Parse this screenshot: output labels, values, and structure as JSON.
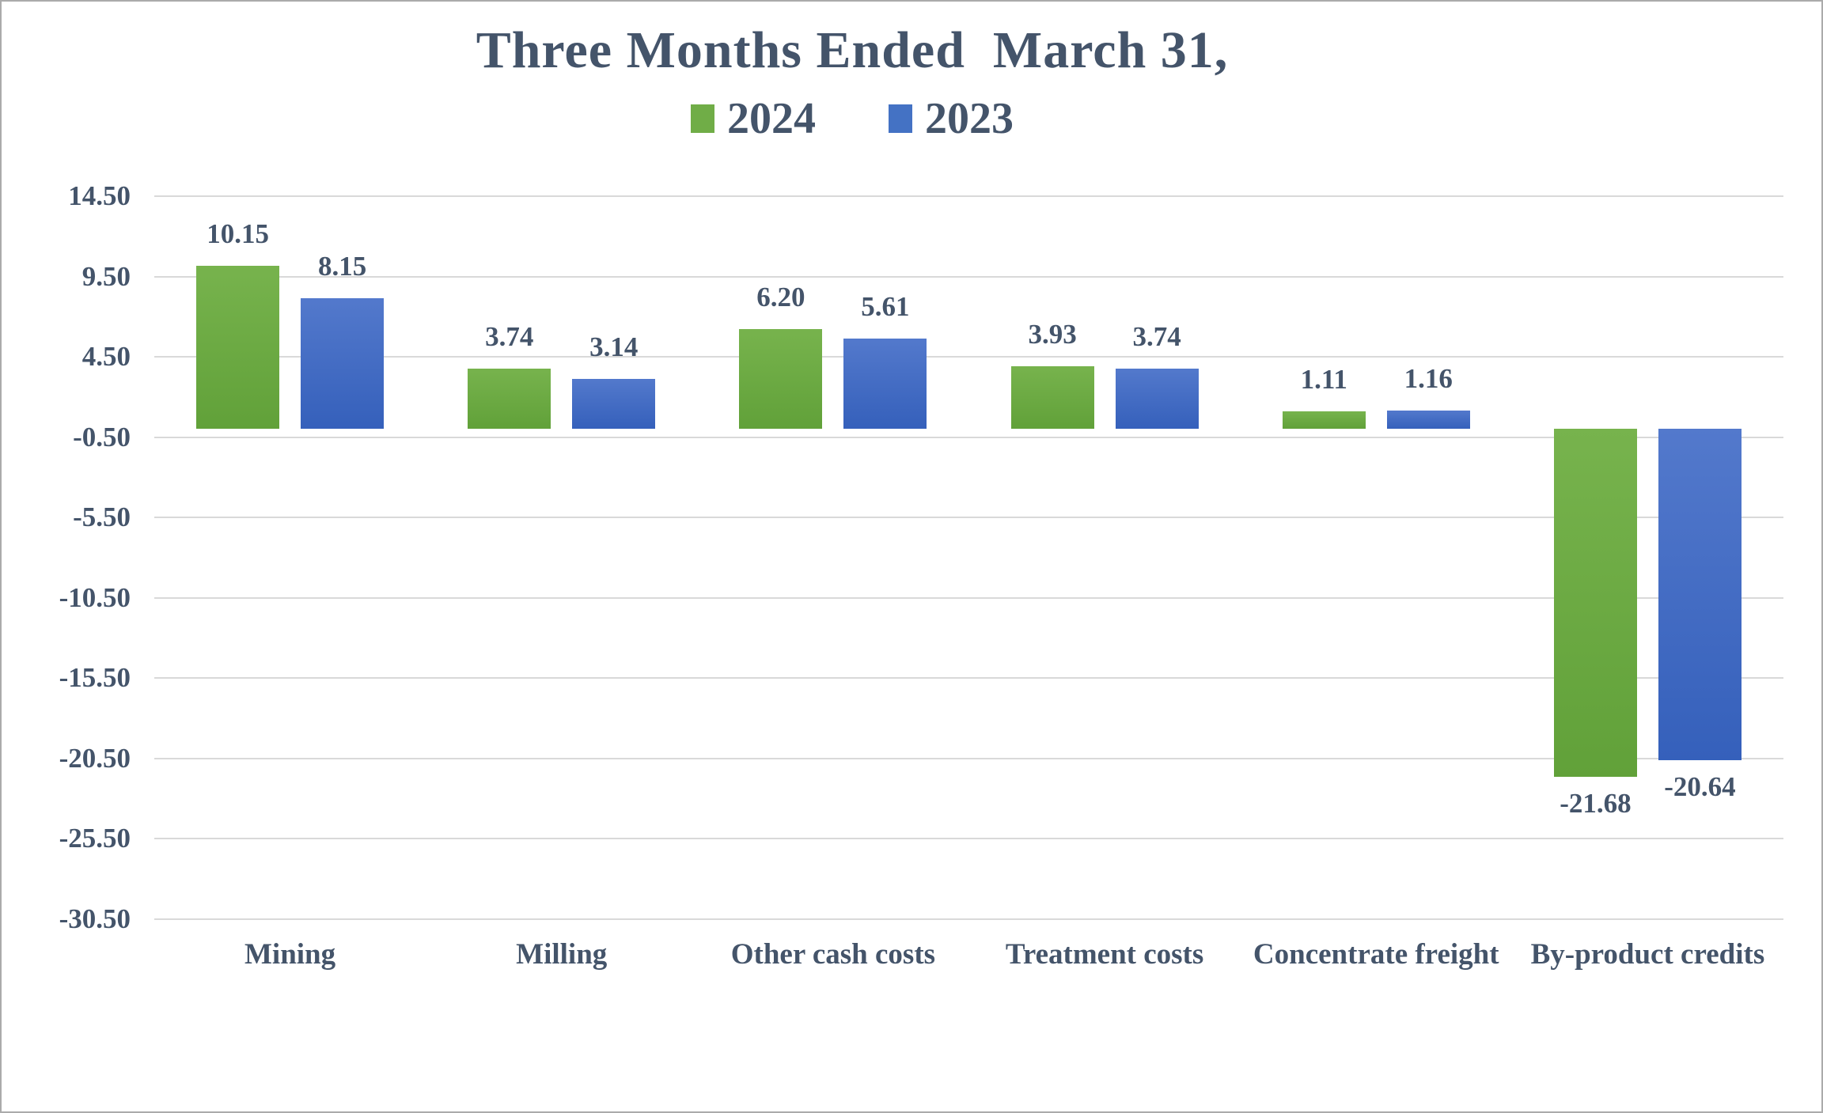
{
  "chart_data": {
    "type": "bar",
    "title": "Three Months Ended  March 31,",
    "categories": [
      "Mining",
      "Milling",
      "Other cash costs",
      "Treatment costs",
      "Concentrate freight",
      "By-product credits"
    ],
    "series": [
      {
        "name": "2024",
        "color": "#70AD47",
        "fill_top": "#77B34D",
        "fill_bottom": "#61A139",
        "values": [
          10.15,
          3.74,
          6.2,
          3.93,
          1.11,
          -21.68
        ]
      },
      {
        "name": "2023",
        "color": "#4472C4",
        "fill_top": "#5379CC",
        "fill_bottom": "#3560BB",
        "values": [
          8.15,
          3.14,
          5.61,
          3.74,
          1.16,
          -20.64
        ]
      }
    ],
    "y_ticks": [
      14.5,
      9.5,
      4.5,
      -0.5,
      -5.5,
      -10.5,
      -15.5,
      -20.5,
      -25.5,
      -30.5
    ],
    "ylim": [
      -30.5,
      14.5
    ],
    "grid": true,
    "legend_position": "top",
    "value_labels": true,
    "text_color": "#44546A",
    "gridline_color": "#D9D9D9",
    "background_color": "#FFFFFF"
  }
}
